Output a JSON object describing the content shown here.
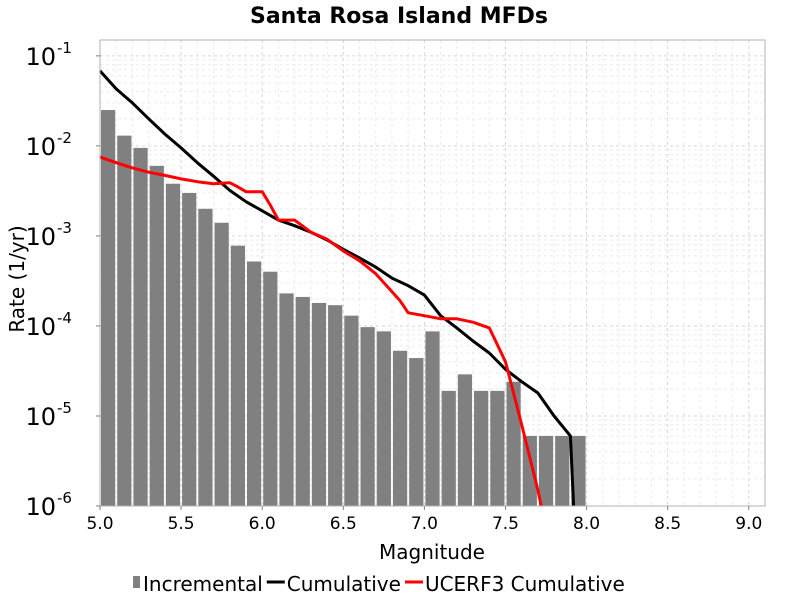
{
  "chart_data": {
    "type": "bar",
    "title": "Santa Rosa Island MFDs",
    "xlabel": "Magnitude",
    "ylabel": "Rate (1/yr)",
    "xlim": [
      5.0,
      9.1
    ],
    "ylim": [
      1e-06,
      0.15
    ],
    "yscale": "log",
    "grid": true,
    "legend_position": "bottom",
    "xticks": [
      {
        "value": 5.0,
        "label": "5.0"
      },
      {
        "value": 5.5,
        "label": "5.5"
      },
      {
        "value": 6.0,
        "label": "6.0"
      },
      {
        "value": 6.5,
        "label": "6.5"
      },
      {
        "value": 7.0,
        "label": "7.0"
      },
      {
        "value": 7.5,
        "label": "7.5"
      },
      {
        "value": 8.0,
        "label": "8.0"
      },
      {
        "value": 8.5,
        "label": "8.5"
      },
      {
        "value": 9.0,
        "label": "9.0"
      }
    ],
    "yticks": [
      {
        "value": 1e-06,
        "base": "10",
        "exp": "-6"
      },
      {
        "value": 1e-05,
        "base": "10",
        "exp": "-5"
      },
      {
        "value": 0.0001,
        "base": "10",
        "exp": "-4"
      },
      {
        "value": 0.001,
        "base": "10",
        "exp": "-3"
      },
      {
        "value": 0.01,
        "base": "10",
        "exp": "-2"
      },
      {
        "value": 0.1,
        "base": "10",
        "exp": "-1"
      }
    ],
    "series": [
      {
        "name": "Incremental",
        "kind": "bar",
        "color": "#808080",
        "bin_width": 0.1,
        "x": [
          5.05,
          5.15,
          5.25,
          5.35,
          5.45,
          5.55,
          5.65,
          5.75,
          5.85,
          5.95,
          6.05,
          6.15,
          6.25,
          6.35,
          6.45,
          6.55,
          6.65,
          6.75,
          6.85,
          6.95,
          7.05,
          7.15,
          7.25,
          7.35,
          7.45,
          7.55,
          7.65,
          7.75,
          7.85,
          7.95
        ],
        "values": [
          0.025,
          0.013,
          0.0095,
          0.006,
          0.0038,
          0.003,
          0.002,
          0.0014,
          0.00078,
          0.00052,
          0.0004,
          0.00023,
          0.00021,
          0.00018,
          0.00017,
          0.00013,
          9.7e-05,
          8.7e-05,
          5.3e-05,
          4.4e-05,
          8.7e-05,
          1.9e-05,
          2.9e-05,
          1.9e-05,
          1.9e-05,
          2.4e-05,
          6e-06,
          6e-06,
          6e-06,
          6e-06
        ]
      },
      {
        "name": "Cumulative",
        "kind": "line",
        "color": "#000000",
        "x": [
          5.0,
          5.1,
          5.2,
          5.3,
          5.4,
          5.5,
          5.6,
          5.7,
          5.8,
          5.9,
          6.0,
          6.1,
          6.2,
          6.3,
          6.4,
          6.5,
          6.6,
          6.7,
          6.8,
          6.9,
          7.0,
          7.1,
          7.2,
          7.3,
          7.4,
          7.5,
          7.6,
          7.7,
          7.8,
          7.9,
          7.92
        ],
        "values": [
          0.068,
          0.043,
          0.03,
          0.02,
          0.0135,
          0.0095,
          0.0065,
          0.0046,
          0.0032,
          0.0024,
          0.0019,
          0.0015,
          0.0013,
          0.0011,
          0.0009,
          0.00071,
          0.00057,
          0.00045,
          0.00034,
          0.00028,
          0.00022,
          0.00013,
          9.5e-05,
          6.8e-05,
          5e-05,
          3.3e-05,
          2.4e-05,
          1.8e-05,
          1e-05,
          6e-06,
          1e-06
        ]
      },
      {
        "name": "UCERF3 Cumulative",
        "kind": "line",
        "color": "#ff0000",
        "x": [
          5.0,
          5.1,
          5.2,
          5.3,
          5.4,
          5.5,
          5.6,
          5.7,
          5.8,
          5.85,
          5.9,
          6.0,
          6.05,
          6.1,
          6.2,
          6.3,
          6.4,
          6.5,
          6.6,
          6.7,
          6.8,
          6.85,
          6.9,
          7.0,
          7.1,
          7.2,
          7.3,
          7.4,
          7.5,
          7.6,
          7.7,
          7.72
        ],
        "values": [
          0.0075,
          0.0065,
          0.0057,
          0.0051,
          0.0047,
          0.0043,
          0.004,
          0.0038,
          0.0039,
          0.0035,
          0.0031,
          0.0031,
          0.0022,
          0.0015,
          0.0015,
          0.0011,
          0.00092,
          0.00068,
          0.00053,
          0.00038,
          0.00024,
          0.00019,
          0.00014,
          0.00013,
          0.00012,
          0.00012,
          0.00011,
          9.5e-05,
          4e-05,
          8e-06,
          1.5e-06,
          1e-06
        ]
      }
    ]
  }
}
